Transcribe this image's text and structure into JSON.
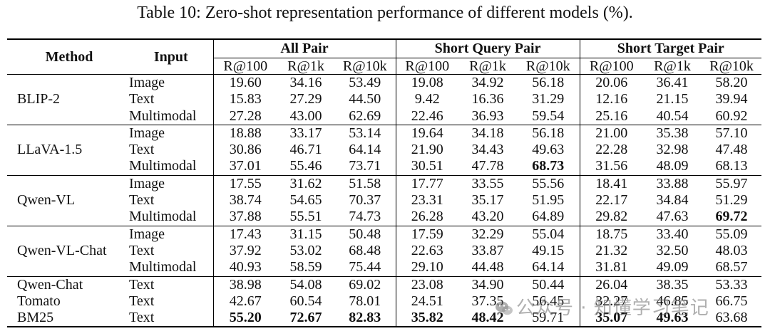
{
  "caption": "Table 10: Zero-shot representation performance of different models (%).",
  "table": {
    "header": {
      "method": "Method",
      "input": "Input",
      "groups": [
        "All Pair",
        "Short Query Pair",
        "Short Target Pair"
      ],
      "metrics": [
        "R@100",
        "R@1k",
        "R@10k",
        "R@100",
        "R@1k",
        "R@10k",
        "R@100",
        "R@1k",
        "R@10k"
      ]
    },
    "groups": [
      {
        "method": "BLIP-2",
        "rows": [
          {
            "input": "Image",
            "values": [
              "19.60",
              "34.16",
              "53.49",
              "19.08",
              "34.92",
              "56.18",
              "20.06",
              "36.41",
              "58.20"
            ],
            "bold": []
          },
          {
            "input": "Text",
            "values": [
              "15.83",
              "27.29",
              "44.50",
              "9.42",
              "16.36",
              "31.29",
              "12.16",
              "21.15",
              "39.94"
            ],
            "bold": []
          },
          {
            "input": "Multimodal",
            "values": [
              "27.28",
              "43.00",
              "62.69",
              "22.46",
              "36.93",
              "59.54",
              "25.16",
              "40.54",
              "60.92"
            ],
            "bold": []
          }
        ]
      },
      {
        "method": "LLaVA-1.5",
        "rows": [
          {
            "input": "Image",
            "values": [
              "18.88",
              "33.17",
              "53.14",
              "19.64",
              "34.18",
              "56.18",
              "21.00",
              "35.38",
              "57.10"
            ],
            "bold": []
          },
          {
            "input": "Text",
            "values": [
              "30.86",
              "46.71",
              "64.14",
              "21.90",
              "34.43",
              "49.63",
              "22.28",
              "32.98",
              "47.48"
            ],
            "bold": []
          },
          {
            "input": "Multimodal",
            "values": [
              "37.01",
              "55.46",
              "73.71",
              "30.51",
              "47.78",
              "68.73",
              "31.56",
              "48.09",
              "68.13"
            ],
            "bold": [
              5
            ]
          }
        ]
      },
      {
        "method": "Qwen-VL",
        "rows": [
          {
            "input": "Image",
            "values": [
              "17.55",
              "31.62",
              "51.58",
              "17.77",
              "33.55",
              "55.56",
              "18.41",
              "33.88",
              "55.97"
            ],
            "bold": []
          },
          {
            "input": "Text",
            "values": [
              "38.74",
              "54.65",
              "70.37",
              "23.31",
              "35.17",
              "51.95",
              "22.17",
              "34.84",
              "51.29"
            ],
            "bold": []
          },
          {
            "input": "Multimodal",
            "values": [
              "37.88",
              "55.51",
              "74.73",
              "26.28",
              "43.20",
              "64.89",
              "29.82",
              "47.63",
              "69.72"
            ],
            "bold": [
              8
            ]
          }
        ]
      },
      {
        "method": "Qwen-VL-Chat",
        "rows": [
          {
            "input": "Image",
            "values": [
              "17.43",
              "31.15",
              "50.48",
              "17.59",
              "32.29",
              "55.04",
              "18.75",
              "33.40",
              "55.09"
            ],
            "bold": []
          },
          {
            "input": "Text",
            "values": [
              "37.92",
              "53.02",
              "68.48",
              "22.63",
              "33.87",
              "49.15",
              "21.32",
              "32.50",
              "48.03"
            ],
            "bold": []
          },
          {
            "input": "Multimodal",
            "values": [
              "40.93",
              "58.59",
              "75.44",
              "29.10",
              "44.48",
              "64.14",
              "31.81",
              "49.09",
              "68.57"
            ],
            "bold": []
          }
        ]
      },
      {
        "method": "",
        "rows": [
          {
            "method": "Qwen-Chat",
            "input": "Text",
            "values": [
              "38.98",
              "54.08",
              "69.02",
              "23.08",
              "34.90",
              "50.44",
              "26.04",
              "38.35",
              "53.33"
            ],
            "bold": []
          },
          {
            "method": "Tomato",
            "input": "Text",
            "values": [
              "42.67",
              "60.54",
              "78.01",
              "24.51",
              "37.35",
              "56.45",
              "32.27",
              "46.85",
              "66.75"
            ],
            "bold": []
          },
          {
            "method": "BM25",
            "input": "Text",
            "values": [
              "55.20",
              "72.67",
              "82.83",
              "35.82",
              "48.42",
              "59.71",
              "35.07",
              "49.63",
              "63.68"
            ],
            "bold": [
              0,
              1,
              2,
              3,
              4,
              6,
              7
            ]
          }
        ]
      }
    ]
  },
  "watermark": {
    "text": "公众号 · 知懂学习笔记",
    "icon": "wechat-icon"
  }
}
